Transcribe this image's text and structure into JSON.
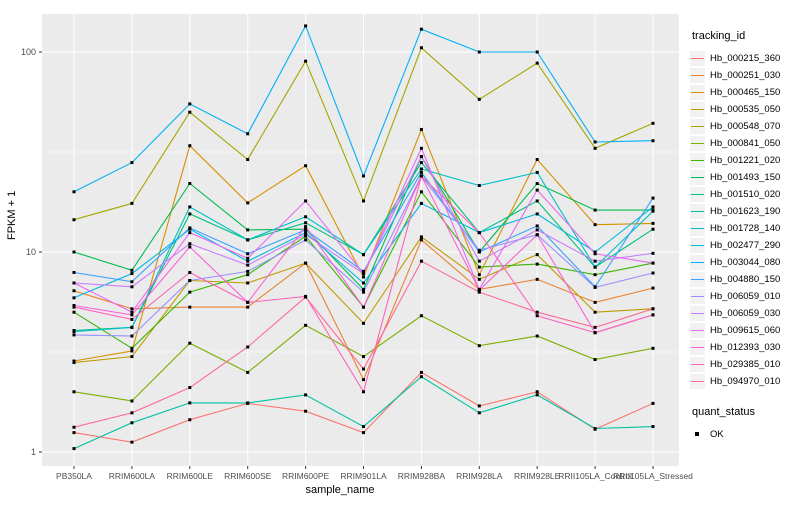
{
  "chart_data": {
    "type": "line",
    "title": "",
    "xlabel": "sample_name",
    "ylabel": "FPKM + 1",
    "scale": "log10",
    "ylim": [
      0.86,
      155
    ],
    "yticks": [
      1,
      10,
      100
    ],
    "yminor": [
      3.162,
      31.62
    ],
    "grid": "on",
    "legend_position": "right",
    "point_marker": "black-square",
    "categories": [
      "PB350LA",
      "RRIM600LA",
      "RRIM600LE",
      "RRIM600SE",
      "RRIM600PE",
      "RRIM901LA",
      "RRIM928BA",
      "RRIM928LA",
      "RRIM928LE",
      "RRII105LA_Control",
      "RRII105LA_Stressed"
    ],
    "series": [
      {
        "name": "Hb_000215_360",
        "color": "#F8766D",
        "values": [
          1.25,
          1.12,
          1.45,
          1.75,
          1.6,
          1.25,
          2.5,
          1.7,
          2.0,
          1.3,
          1.75
        ]
      },
      {
        "name": "Hb_000251_030",
        "color": "#EA8331",
        "values": [
          6.4,
          5.2,
          5.3,
          5.3,
          8.8,
          2.3,
          11.5,
          6.5,
          7.3,
          5.6,
          6.6
        ]
      },
      {
        "name": "Hb_000465_150",
        "color": "#D89000",
        "values": [
          2.85,
          3.2,
          34,
          17.6,
          27,
          7.5,
          41,
          7.7,
          29,
          13.7,
          13.9
        ]
      },
      {
        "name": "Hb_000535_050",
        "color": "#C09B00",
        "values": [
          2.8,
          3.0,
          7.2,
          7.0,
          8.8,
          4.4,
          11.9,
          7.3,
          9.7,
          5.0,
          5.2
        ]
      },
      {
        "name": "Hb_000548_070",
        "color": "#A3A500",
        "values": [
          14.5,
          17.5,
          50,
          29,
          90,
          18,
          105,
          58,
          88,
          33,
          44
        ]
      },
      {
        "name": "Hb_000841_050",
        "color": "#7CAE00",
        "values": [
          2.0,
          1.8,
          3.5,
          2.5,
          4.3,
          3.0,
          4.8,
          3.4,
          3.8,
          2.9,
          3.3
        ]
      },
      {
        "name": "Hb_001221_020",
        "color": "#39B600",
        "values": [
          5.0,
          3.3,
          6.3,
          7.7,
          12,
          5.3,
          20,
          8.4,
          8.7,
          7.7,
          8.8
        ]
      },
      {
        "name": "Hb_001493_150",
        "color": "#00BB4E",
        "values": [
          10,
          8.1,
          22,
          12.9,
          13,
          6.5,
          30,
          10,
          22,
          16.2,
          16.2
        ]
      },
      {
        "name": "Hb_001510_020",
        "color": "#00BF7D",
        "values": [
          4.05,
          4.2,
          15.5,
          11.5,
          14,
          9.7,
          28,
          12.5,
          18,
          8.4,
          13
        ]
      },
      {
        "name": "Hb_001623_190",
        "color": "#00C1A3",
        "values": [
          1.04,
          1.4,
          1.76,
          1.76,
          1.93,
          1.34,
          2.38,
          1.57,
          1.93,
          1.31,
          1.34
        ]
      },
      {
        "name": "Hb_001728_140",
        "color": "#00BFC4",
        "values": [
          4.0,
          4.2,
          16.8,
          11.5,
          15,
          9.7,
          26,
          21.5,
          25,
          8.4,
          16
        ]
      },
      {
        "name": "Hb_002477_290",
        "color": "#00BAE0",
        "values": [
          5.9,
          7.8,
          13,
          9.0,
          12.5,
          7.0,
          17.5,
          12.5,
          15.5,
          10,
          16.8
        ]
      },
      {
        "name": "Hb_003044_080",
        "color": "#00B0F6",
        "values": [
          20,
          28,
          55,
          39,
          135,
          24,
          130,
          100,
          100,
          35.5,
          36
        ]
      },
      {
        "name": "Hb_004880_150",
        "color": "#35A2FF",
        "values": [
          7.9,
          7.1,
          13.2,
          9.8,
          12.9,
          8.0,
          25,
          10,
          13.5,
          6.7,
          18.6
        ]
      },
      {
        "name": "Hb_006059_010",
        "color": "#9590FF",
        "values": [
          3.85,
          3.8,
          7.2,
          8.0,
          11.5,
          6.3,
          24,
          10.2,
          12.2,
          6.65,
          7.85
        ]
      },
      {
        "name": "Hb_006059_030",
        "color": "#C77CFF",
        "values": [
          7.0,
          6.7,
          11,
          8.6,
          12.2,
          7.8,
          30,
          9.0,
          12.9,
          9.0,
          9.85
        ]
      },
      {
        "name": "Hb_009615_060",
        "color": "#E76BF3",
        "values": [
          7.0,
          5.0,
          12.5,
          9.3,
          18,
          7.8,
          33,
          6.5,
          20.4,
          9.8,
          8.8
        ]
      },
      {
        "name": "Hb_012393_030",
        "color": "#FA62DB",
        "values": [
          5.4,
          4.85,
          10.6,
          5.6,
          13.4,
          5.3,
          24,
          6.45,
          12.2,
          3.95,
          4.85
        ]
      },
      {
        "name": "Hb_029385_010",
        "color": "#FF62BC",
        "values": [
          5.3,
          4.6,
          7.9,
          5.6,
          6.0,
          2.0,
          24,
          12.5,
          4.8,
          3.95,
          4.85
        ]
      },
      {
        "name": "Hb_094970_010",
        "color": "#FF6A98",
        "values": [
          1.33,
          1.57,
          2.1,
          3.35,
          5.95,
          2.6,
          9.0,
          6.3,
          5.0,
          4.2,
          5.2
        ]
      }
    ]
  },
  "legend": {
    "tracking_title": "tracking_id",
    "quant_title": "quant_status",
    "quant_items": [
      {
        "label": "OK",
        "marker": "black-square"
      }
    ]
  },
  "style_colors": {
    "panel_background": "#EBEBEB",
    "grid_major": "#FFFFFF",
    "grid_minor": "#FFFFFF",
    "tick_text": "#4D4D4D",
    "tick_mark": "#333333",
    "legend_key_background": "#F2F2F2",
    "point": "#000000"
  }
}
